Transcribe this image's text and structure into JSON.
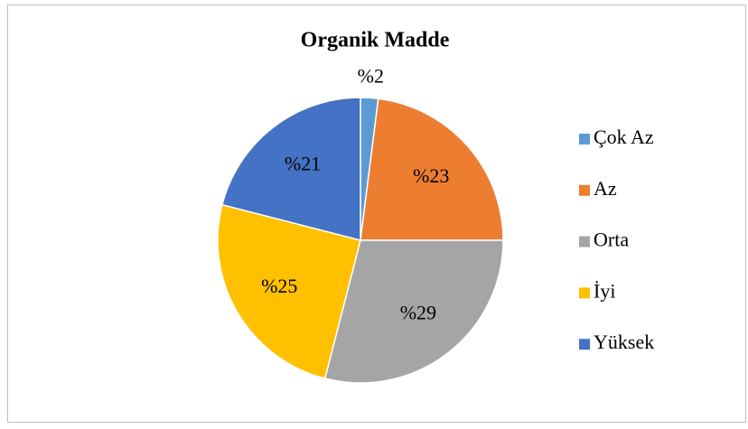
{
  "chart_data": {
    "type": "pie",
    "title": "Organik Madde",
    "categories": [
      "Çok Az",
      "Az",
      "Orta",
      "İyi",
      "Yüksek"
    ],
    "values": [
      2,
      23,
      29,
      25,
      21
    ],
    "value_labels": [
      "%2",
      "%23",
      "%29",
      "%25",
      "%21"
    ],
    "colors": [
      "#5b9bd5",
      "#ed7d31",
      "#a5a5a5",
      "#ffc000",
      "#4472c4"
    ],
    "legend": "right"
  }
}
